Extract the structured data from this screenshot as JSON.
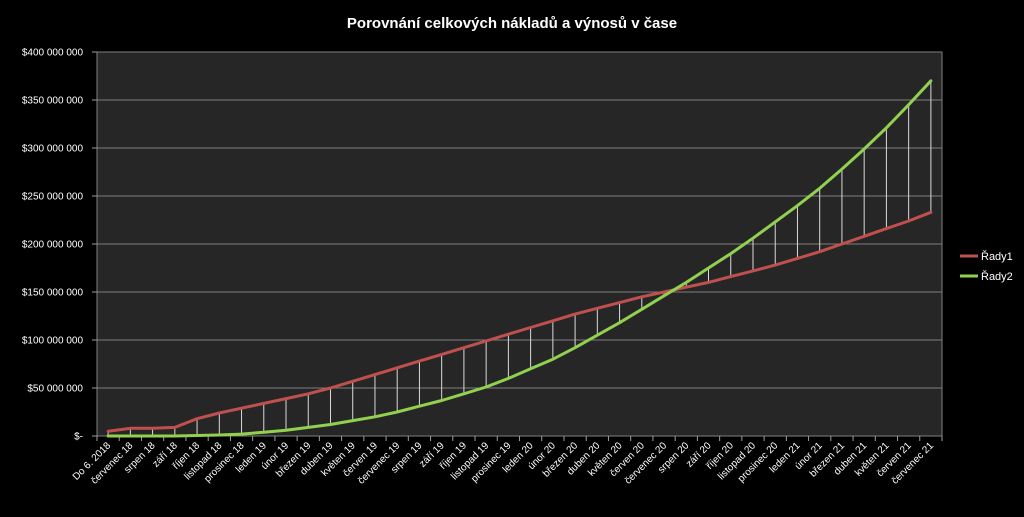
{
  "chart_data": {
    "type": "line",
    "title": "Porovnání celkových nákladů a výnosů v čase",
    "xlabel": "",
    "ylabel": "",
    "ylim": [
      0,
      400000000
    ],
    "yticks": [
      0,
      50000000,
      100000000,
      150000000,
      200000000,
      250000000,
      300000000,
      350000000,
      400000000
    ],
    "ytick_labels": [
      "$-",
      "$50 000 000",
      "$100 000 000",
      "$150 000 000",
      "$200 000 000",
      "$250 000 000",
      "$300 000 000",
      "$350 000 000",
      "$400 000 000"
    ],
    "grid": true,
    "legend_position": "right",
    "drop_lines": true,
    "categories": [
      "Do 6. 2018",
      "červenec 18",
      "srpen 18",
      "září 18",
      "říjen 18",
      "listopad 18",
      "prosinec 18",
      "leden 19",
      "únor 19",
      "březen 19",
      "duben 19",
      "květen 19",
      "červen 19",
      "červenec 19",
      "srpen 19",
      "září 19",
      "říjen 19",
      "listopad 19",
      "prosinec 19",
      "leden 20",
      "únor 20",
      "březen 20",
      "duben 20",
      "květen 20",
      "červen 20",
      "červenec 20",
      "srpen 20",
      "září 20",
      "říjen 20",
      "listopad 20",
      "prosinec 20",
      "leden 21",
      "únor 21",
      "březen 21",
      "duben 21",
      "květen 21",
      "červen 21",
      "červenec 21"
    ],
    "series": [
      {
        "name": "Řady1",
        "color": "#c0504d",
        "values": [
          5000000,
          8000000,
          8000000,
          9000000,
          18000000,
          24000000,
          29000000,
          34000000,
          39000000,
          44000000,
          50000000,
          57000000,
          64000000,
          71000000,
          78000000,
          85000000,
          92000000,
          99000000,
          106000000,
          113000000,
          120000000,
          127000000,
          133000000,
          139000000,
          145000000,
          150000000,
          155000000,
          160000000,
          166000000,
          172000000,
          178000000,
          185000000,
          192000000,
          200000000,
          208000000,
          216000000,
          224000000,
          233000000
        ]
      },
      {
        "name": "Řady2",
        "color": "#92d050",
        "values": [
          0,
          0,
          0,
          0,
          500000,
          1000000,
          2000000,
          4000000,
          6000000,
          9000000,
          12000000,
          16000000,
          20000000,
          25000000,
          31000000,
          37000000,
          44000000,
          51000000,
          60000000,
          70000000,
          80000000,
          92000000,
          105000000,
          118000000,
          132000000,
          146000000,
          160000000,
          175000000,
          190000000,
          206000000,
          223000000,
          240000000,
          258000000,
          278000000,
          299000000,
          321000000,
          345000000,
          370000000
        ]
      }
    ]
  }
}
